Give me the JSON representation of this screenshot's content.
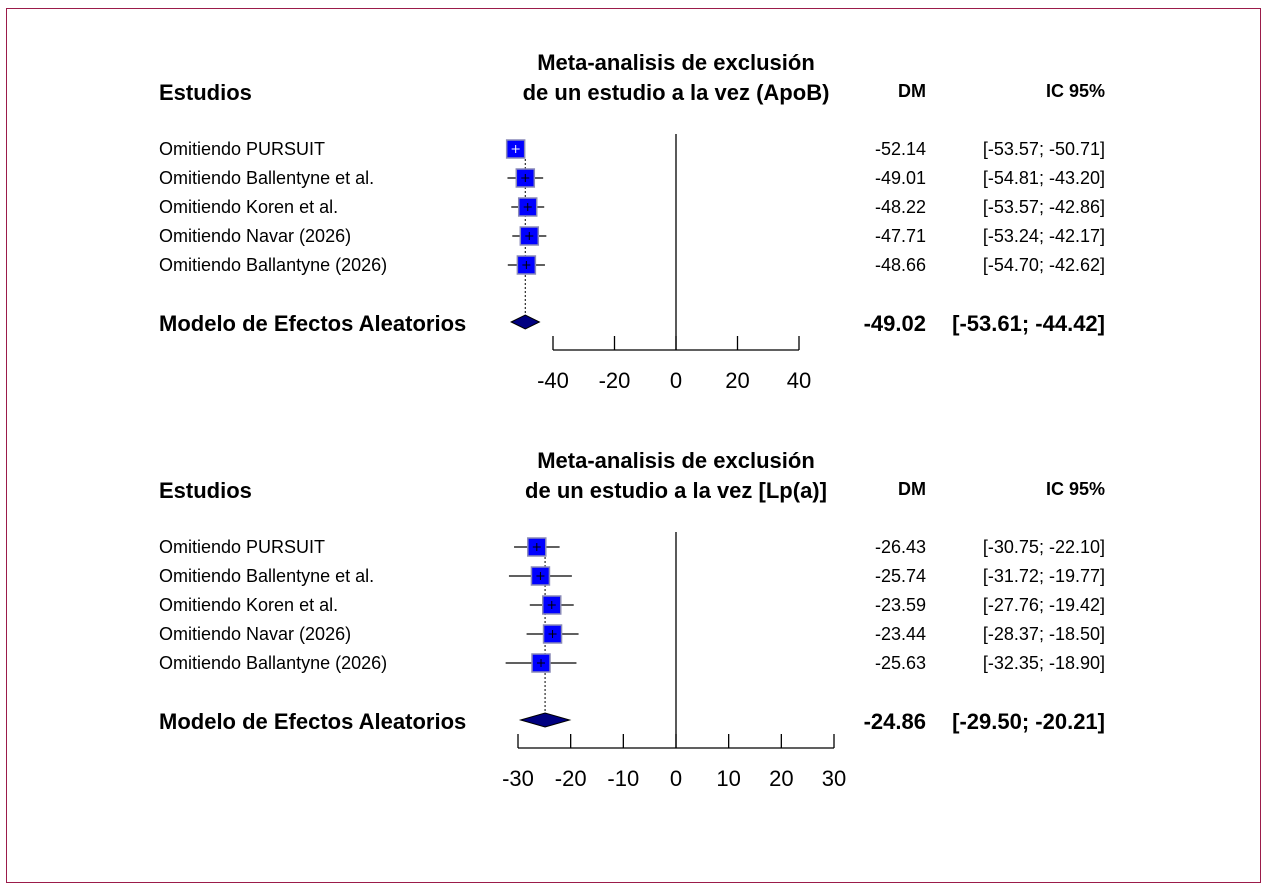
{
  "colors": {
    "frame": "#9b1b4a",
    "box_fill": "#0000ff",
    "box_stroke": "#8a8ab8",
    "diamond": "#000080"
  },
  "chart_data": [
    {
      "type": "forest",
      "title": [
        "Meta-analisis de exclusión",
        "de un estudio a la vez (ApoB)"
      ],
      "col_study": "Estudios",
      "col_md": "DM",
      "col_ci": "IC 95%",
      "xlim": [
        -40,
        40
      ],
      "ticks": [
        "-40",
        "-20",
        "0",
        "20",
        "40"
      ],
      "reference_line": 0,
      "studies": [
        {
          "label": "Omitiendo  PURSUIT",
          "md": -52.14,
          "lo": -53.57,
          "hi": -50.71,
          "md_text": "-52.14",
          "ci_text": "[-53.57; -50.71]"
        },
        {
          "label": "Omitiendo  Ballentyne et al.",
          "md": -49.01,
          "lo": -54.81,
          "hi": -43.2,
          "md_text": "-49.01",
          "ci_text": "[-54.81; -43.20]"
        },
        {
          "label": "Omitiendo  Koren et al.",
          "md": -48.22,
          "lo": -53.57,
          "hi": -42.86,
          "md_text": "-48.22",
          "ci_text": "[-53.57; -42.86]"
        },
        {
          "label": "Omitiendo  Navar (2026)",
          "md": -47.71,
          "lo": -53.24,
          "hi": -42.17,
          "md_text": "-47.71",
          "ci_text": "[-53.24; -42.17]"
        },
        {
          "label": "Omitiendo  Ballantyne (2026)",
          "md": -48.66,
          "lo": -54.7,
          "hi": -42.62,
          "md_text": "-48.66",
          "ci_text": "[-54.70; -42.62]"
        }
      ],
      "pooled": {
        "label": "Modelo de Efectos Aleatorios",
        "md": -49.02,
        "lo": -53.61,
        "hi": -44.42,
        "md_text": "-49.02",
        "ci_text": "[-53.61; -44.42]"
      }
    },
    {
      "type": "forest",
      "title": [
        "Meta-analisis de exclusión",
        "de un estudio a la vez [Lp(a)]"
      ],
      "col_study": "Estudios",
      "col_md": "DM",
      "col_ci": "IC 95%",
      "xlim": [
        -30,
        30
      ],
      "ticks": [
        "-30",
        "-20",
        "-10",
        "0",
        "10",
        "20",
        "30"
      ],
      "reference_line": 0,
      "studies": [
        {
          "label": "Omitiendo  PURSUIT",
          "md": -26.43,
          "lo": -30.75,
          "hi": -22.1,
          "md_text": "-26.43",
          "ci_text": "[-30.75; -22.10]"
        },
        {
          "label": "Omitiendo  Ballentyne et al.",
          "md": -25.74,
          "lo": -31.72,
          "hi": -19.77,
          "md_text": "-25.74",
          "ci_text": "[-31.72; -19.77]"
        },
        {
          "label": "Omitiendo  Koren et al.",
          "md": -23.59,
          "lo": -27.76,
          "hi": -19.42,
          "md_text": "-23.59",
          "ci_text": "[-27.76; -19.42]"
        },
        {
          "label": "Omitiendo  Navar (2026)",
          "md": -23.44,
          "lo": -28.37,
          "hi": -18.5,
          "md_text": "-23.44",
          "ci_text": "[-28.37; -18.50]"
        },
        {
          "label": "Omitiendo  Ballantyne (2026)",
          "md": -25.63,
          "lo": -32.35,
          "hi": -18.9,
          "md_text": "-25.63",
          "ci_text": "[-32.35; -18.90]"
        }
      ],
      "pooled": {
        "label": "Modelo de Efectos Aleatorios",
        "md": -24.86,
        "lo": -29.5,
        "hi": -20.21,
        "md_text": "-24.86",
        "ci_text": "[-29.50; -20.21]"
      }
    }
  ]
}
